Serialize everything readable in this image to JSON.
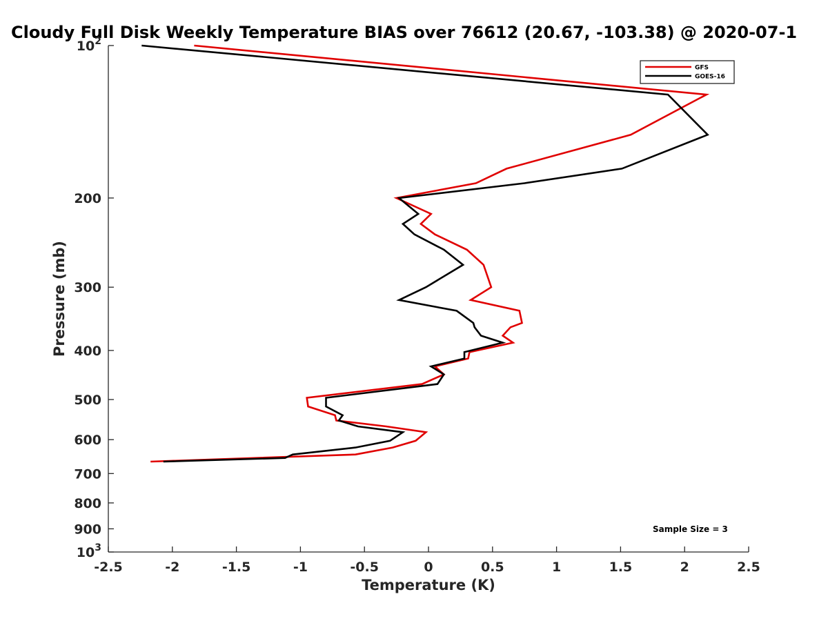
{
  "chart_data": {
    "type": "line",
    "title": "Cloudy Full Disk Weekly Temperature BIAS over 76612 (20.67, -103.38) @ 2020-07-1",
    "xlabel": "Temperature (K)",
    "ylabel": "Pressure (mb)",
    "xlim": [
      -2.5,
      2.5
    ],
    "ylim": [
      100,
      1000
    ],
    "y_scale": "log",
    "y_reversed": true,
    "x_ticks": [
      -2.5,
      -2,
      -1.5,
      -1,
      -0.5,
      0,
      0.5,
      1,
      1.5,
      2,
      2.5
    ],
    "x_tick_labels": [
      "-2.5",
      "-2",
      "-1.5",
      "-1",
      "-0.5",
      "0",
      "0.5",
      "1",
      "1.5",
      "2",
      "2.5"
    ],
    "y_ticks": [
      100,
      200,
      300,
      400,
      500,
      600,
      700,
      800,
      900,
      1000
    ],
    "y_tick_labels": [
      {
        "base": "10",
        "exp": "2"
      },
      {
        "base": "200",
        "exp": ""
      },
      {
        "base": "300",
        "exp": ""
      },
      {
        "base": "400",
        "exp": ""
      },
      {
        "base": "500",
        "exp": ""
      },
      {
        "base": "600",
        "exp": ""
      },
      {
        "base": "700",
        "exp": ""
      },
      {
        "base": "800",
        "exp": ""
      },
      {
        "base": "900",
        "exp": ""
      },
      {
        "base": "10",
        "exp": "3"
      }
    ],
    "grid": false,
    "legend_position": "top-right",
    "series": [
      {
        "name": "GFS",
        "color": "#e00000",
        "points": [
          [
            -1.83,
            100
          ],
          [
            2.17,
            125
          ],
          [
            1.58,
            150
          ],
          [
            0.61,
            175
          ],
          [
            0.37,
            187
          ],
          [
            -0.25,
            200
          ],
          [
            0.02,
            215
          ],
          [
            -0.06,
            225
          ],
          [
            0.05,
            236
          ],
          [
            0.3,
            253
          ],
          [
            0.43,
            271
          ],
          [
            0.49,
            300
          ],
          [
            0.33,
            318
          ],
          [
            0.71,
            334
          ],
          [
            0.73,
            353
          ],
          [
            0.64,
            360
          ],
          [
            0.58,
            374
          ],
          [
            0.66,
            386
          ],
          [
            0.32,
            403
          ],
          [
            0.31,
            415
          ],
          [
            0.05,
            430
          ],
          [
            0.12,
            446
          ],
          [
            -0.05,
            466
          ],
          [
            -0.95,
            496
          ],
          [
            -0.94,
            516
          ],
          [
            -0.73,
            537
          ],
          [
            -0.72,
            550
          ],
          [
            -0.33,
            565
          ],
          [
            -0.02,
            580
          ],
          [
            -0.1,
            603
          ],
          [
            -0.28,
            622
          ],
          [
            -0.57,
            642
          ],
          [
            -2.17,
            663
          ]
        ]
      },
      {
        "name": "GOES-16",
        "color": "#000000",
        "points": [
          [
            -2.24,
            100
          ],
          [
            1.87,
            125
          ],
          [
            2.18,
            150
          ],
          [
            1.51,
            175
          ],
          [
            0.75,
            187
          ],
          [
            -0.23,
            200
          ],
          [
            -0.08,
            215
          ],
          [
            -0.2,
            225
          ],
          [
            -0.11,
            236
          ],
          [
            0.12,
            253
          ],
          [
            0.27,
            271
          ],
          [
            -0.02,
            300
          ],
          [
            -0.23,
            318
          ],
          [
            0.22,
            334
          ],
          [
            0.35,
            353
          ],
          [
            0.36,
            360
          ],
          [
            0.41,
            374
          ],
          [
            0.58,
            386
          ],
          [
            0.28,
            403
          ],
          [
            0.28,
            415
          ],
          [
            0.02,
            430
          ],
          [
            0.12,
            446
          ],
          [
            0.07,
            466
          ],
          [
            -0.8,
            496
          ],
          [
            -0.8,
            516
          ],
          [
            -0.67,
            537
          ],
          [
            -0.7,
            550
          ],
          [
            -0.55,
            565
          ],
          [
            -0.2,
            580
          ],
          [
            -0.3,
            603
          ],
          [
            -0.57,
            622
          ],
          [
            -1.06,
            642
          ],
          [
            -1.12,
            652
          ],
          [
            -2.07,
            663
          ]
        ]
      }
    ],
    "annotations": [
      "Sample Size = 3"
    ]
  }
}
